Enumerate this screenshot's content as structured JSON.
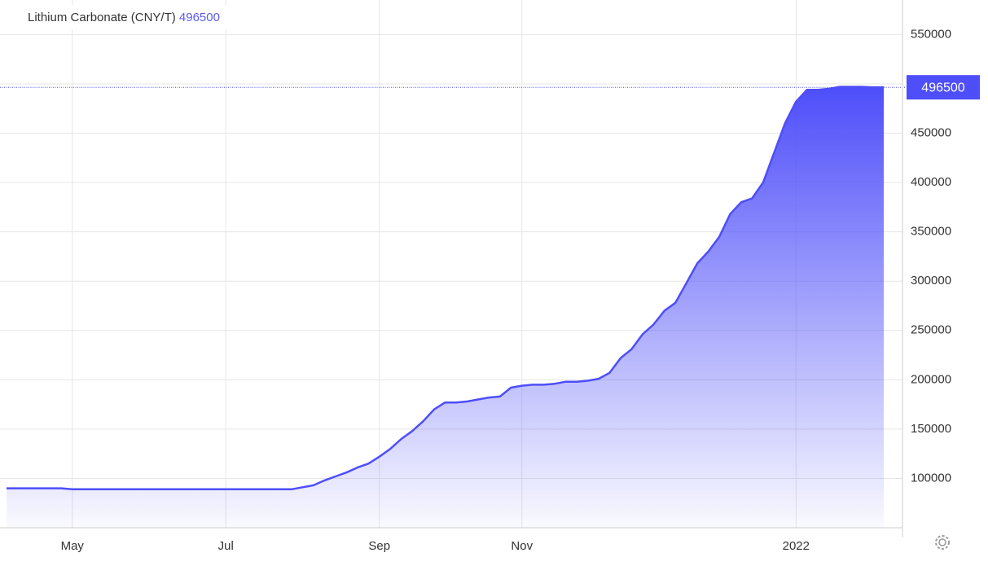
{
  "chart_data": {
    "type": "area",
    "title": "Lithium Carbonate (CNY/T)",
    "last_value": 496500,
    "color": "#4e4efa",
    "values": [
      90000,
      90000,
      90000,
      90000,
      90000,
      90000,
      89000,
      89000,
      89000,
      89000,
      89000,
      89000,
      89000,
      89000,
      89000,
      89000,
      89000,
      89000,
      89000,
      89000,
      89000,
      89000,
      89000,
      89000,
      89000,
      89000,
      89000,
      91000,
      93000,
      98000,
      102000,
      106000,
      111000,
      115000,
      122000,
      130000,
      140000,
      148000,
      158000,
      170000,
      177000,
      177000,
      178000,
      180000,
      182000,
      183000,
      192000,
      194000,
      195000,
      195000,
      196000,
      198000,
      198000,
      199000,
      201000,
      207000,
      222000,
      231000,
      246000,
      256000,
      270000,
      278000,
      298000,
      318000,
      330000,
      345000,
      368000,
      380000,
      384000,
      400000,
      430000,
      460000,
      482000,
      494000,
      494000,
      495000,
      497000,
      497000,
      497000,
      496500,
      496500
    ],
    "xlim": [
      0,
      80
    ],
    "xticks": [
      {
        "value": 6,
        "label": "May"
      },
      {
        "value": 20,
        "label": "Jul"
      },
      {
        "value": 34,
        "label": "Sep"
      },
      {
        "value": 47,
        "label": "Nov"
      },
      {
        "value": 72,
        "label": "2022"
      }
    ],
    "ylim": [
      50000,
      585000
    ],
    "yticks": [
      100000,
      150000,
      200000,
      250000,
      300000,
      350000,
      400000,
      450000,
      500000,
      550000
    ],
    "grid": true
  }
}
